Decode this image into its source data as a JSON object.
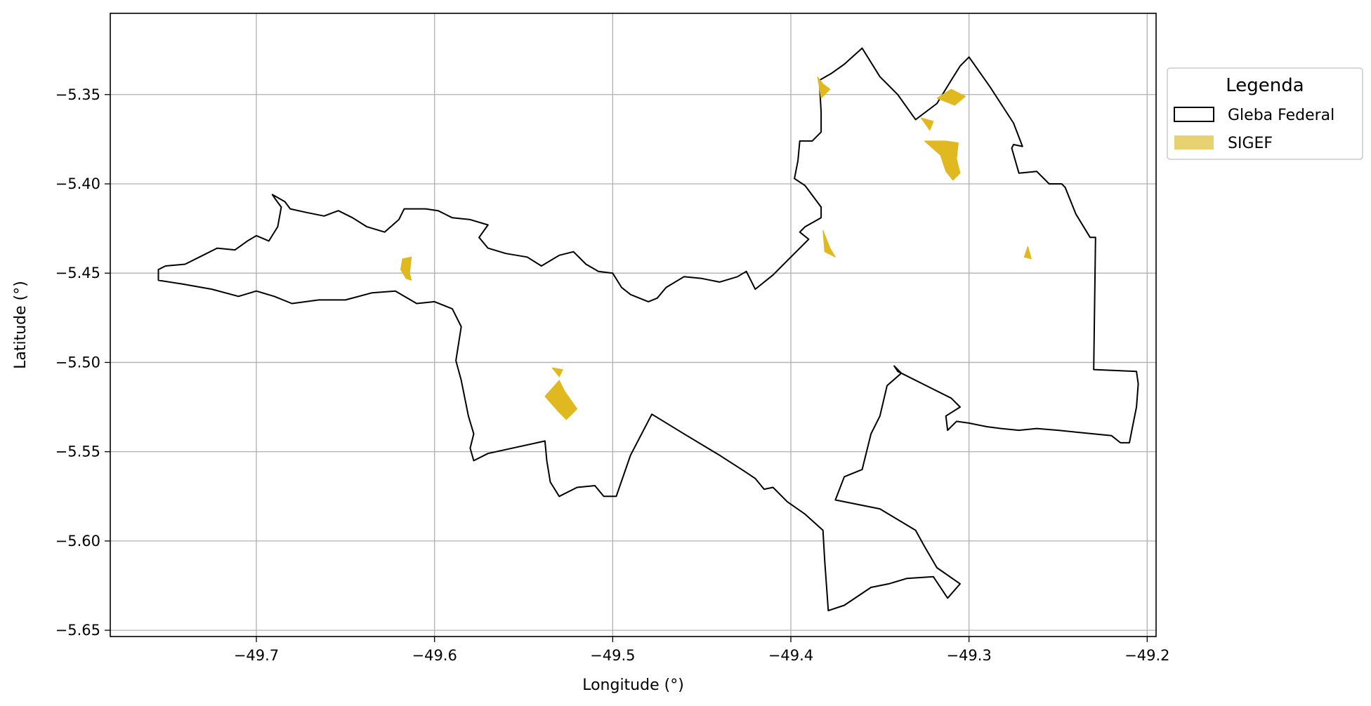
{
  "chart_data": {
    "type": "map",
    "xlabel": "Longitude (°)",
    "ylabel": "Latitude (°)",
    "xlim": [
      -49.782,
      -49.195
    ],
    "ylim": [
      -5.6535,
      -5.3045
    ],
    "grid": true,
    "x_ticks": [
      -49.7,
      -49.6,
      -49.5,
      -49.4,
      -49.3,
      -49.2
    ],
    "x_tick_labels": [
      "−49.7",
      "−49.6",
      "−49.5",
      "−49.4",
      "−49.3",
      "−49.2"
    ],
    "y_ticks": [
      -5.35,
      -5.4,
      -5.45,
      -5.5,
      -5.55,
      -5.6,
      -5.65
    ],
    "y_tick_labels": [
      "−5.35",
      "−5.40",
      "−5.45",
      "−5.50",
      "−5.55",
      "−5.60",
      "−5.65"
    ],
    "legend": {
      "title": "Legenda",
      "placement": "outside-right-top",
      "items": [
        {
          "label": "Gleba Federal",
          "style": "outline",
          "edge_color": "#000000",
          "face_color": "#ffffff"
        },
        {
          "label": "SIGEF",
          "style": "fill",
          "face_color": "#e8d170"
        }
      ]
    },
    "colors": {
      "gleba_edge": "#000000",
      "sigef_fill": "#e0b820",
      "grid": "#b0b0b0"
    },
    "series": [
      {
        "name": "Gleba Federal",
        "kind": "polygon",
        "coords": [
          [
            -49.755,
            -5.448
          ],
          [
            -49.751,
            -5.446
          ],
          [
            -49.74,
            -5.445
          ],
          [
            -49.73,
            -5.44
          ],
          [
            -49.722,
            -5.436
          ],
          [
            -49.712,
            -5.437
          ],
          [
            -49.705,
            -5.432
          ],
          [
            -49.7,
            -5.429
          ],
          [
            -49.693,
            -5.432
          ],
          [
            -49.688,
            -5.424
          ],
          [
            -49.686,
            -5.413
          ],
          [
            -49.689,
            -5.409
          ],
          [
            -49.691,
            -5.406
          ],
          [
            -49.684,
            -5.41
          ],
          [
            -49.681,
            -5.414
          ],
          [
            -49.672,
            -5.416
          ],
          [
            -49.662,
            -5.418
          ],
          [
            -49.654,
            -5.415
          ],
          [
            -49.646,
            -5.419
          ],
          [
            -49.638,
            -5.424
          ],
          [
            -49.628,
            -5.427
          ],
          [
            -49.62,
            -5.42
          ],
          [
            -49.617,
            -5.414
          ],
          [
            -49.605,
            -5.414
          ],
          [
            -49.598,
            -5.415
          ],
          [
            -49.59,
            -5.419
          ],
          [
            -49.58,
            -5.42
          ],
          [
            -49.57,
            -5.423
          ],
          [
            -49.575,
            -5.43
          ],
          [
            -49.57,
            -5.436
          ],
          [
            -49.56,
            -5.439
          ],
          [
            -49.548,
            -5.441
          ],
          [
            -49.54,
            -5.446
          ],
          [
            -49.53,
            -5.44
          ],
          [
            -49.522,
            -5.438
          ],
          [
            -49.515,
            -5.445
          ],
          [
            -49.508,
            -5.449
          ],
          [
            -49.5,
            -5.45
          ],
          [
            -49.495,
            -5.458
          ],
          [
            -49.49,
            -5.462
          ],
          [
            -49.48,
            -5.466
          ],
          [
            -49.475,
            -5.464
          ],
          [
            -49.47,
            -5.458
          ],
          [
            -49.46,
            -5.452
          ],
          [
            -49.45,
            -5.453
          ],
          [
            -49.44,
            -5.455
          ],
          [
            -49.43,
            -5.452
          ],
          [
            -49.425,
            -5.449
          ],
          [
            -49.42,
            -5.459
          ],
          [
            -49.41,
            -5.451
          ],
          [
            -49.4,
            -5.441
          ],
          [
            -49.39,
            -5.431
          ],
          [
            -49.395,
            -5.427
          ],
          [
            -49.392,
            -5.424
          ],
          [
            -49.383,
            -5.419
          ],
          [
            -49.383,
            -5.413
          ],
          [
            -49.392,
            -5.401
          ],
          [
            -49.398,
            -5.397
          ],
          [
            -49.396,
            -5.387
          ],
          [
            -49.395,
            -5.376
          ],
          [
            -49.388,
            -5.376
          ],
          [
            -49.383,
            -5.371
          ],
          [
            -49.383,
            -5.36
          ],
          [
            -49.384,
            -5.342
          ],
          [
            -49.377,
            -5.338
          ],
          [
            -49.37,
            -5.333
          ],
          [
            -49.36,
            -5.324
          ],
          [
            -49.35,
            -5.34
          ],
          [
            -49.34,
            -5.35
          ],
          [
            -49.33,
            -5.364
          ],
          [
            -49.318,
            -5.355
          ],
          [
            -49.31,
            -5.342
          ],
          [
            -49.305,
            -5.334
          ],
          [
            -49.3,
            -5.329
          ],
          [
            -49.288,
            -5.346
          ],
          [
            -49.275,
            -5.366
          ],
          [
            -49.27,
            -5.379
          ],
          [
            -49.275,
            -5.378
          ],
          [
            -49.276,
            -5.38
          ],
          [
            -49.272,
            -5.394
          ],
          [
            -49.262,
            -5.393
          ],
          [
            -49.255,
            -5.4
          ],
          [
            -49.248,
            -5.4
          ],
          [
            -49.246,
            -5.402
          ],
          [
            -49.24,
            -5.417
          ],
          [
            -49.232,
            -5.43
          ],
          [
            -49.229,
            -5.43
          ],
          [
            -49.23,
            -5.504
          ],
          [
            -49.206,
            -5.505
          ],
          [
            -49.205,
            -5.512
          ],
          [
            -49.206,
            -5.525
          ],
          [
            -49.208,
            -5.535
          ],
          [
            -49.21,
            -5.545
          ],
          [
            -49.215,
            -5.545
          ],
          [
            -49.22,
            -5.541
          ],
          [
            -49.23,
            -5.54
          ],
          [
            -49.24,
            -5.539
          ],
          [
            -49.25,
            -5.538
          ],
          [
            -49.262,
            -5.537
          ],
          [
            -49.272,
            -5.538
          ],
          [
            -49.282,
            -5.537
          ],
          [
            -49.29,
            -5.536
          ],
          [
            -49.3,
            -5.534
          ],
          [
            -49.307,
            -5.533
          ],
          [
            -49.312,
            -5.538
          ],
          [
            -49.313,
            -5.53
          ],
          [
            -49.305,
            -5.525
          ],
          [
            -49.31,
            -5.52
          ],
          [
            -49.32,
            -5.515
          ],
          [
            -49.34,
            -5.505
          ],
          [
            -49.342,
            -5.502
          ],
          [
            -49.338,
            -5.506
          ],
          [
            -49.346,
            -5.513
          ],
          [
            -49.35,
            -5.53
          ],
          [
            -49.355,
            -5.54
          ],
          [
            -49.36,
            -5.56
          ],
          [
            -49.37,
            -5.564
          ],
          [
            -49.375,
            -5.577
          ],
          [
            -49.35,
            -5.582
          ],
          [
            -49.33,
            -5.594
          ],
          [
            -49.325,
            -5.603
          ],
          [
            -49.318,
            -5.615
          ],
          [
            -49.305,
            -5.624
          ],
          [
            -49.312,
            -5.632
          ],
          [
            -49.32,
            -5.62
          ],
          [
            -49.335,
            -5.621
          ],
          [
            -49.345,
            -5.624
          ],
          [
            -49.355,
            -5.626
          ],
          [
            -49.37,
            -5.636
          ],
          [
            -49.379,
            -5.639
          ],
          [
            -49.381,
            -5.611
          ],
          [
            -49.382,
            -5.594
          ],
          [
            -49.392,
            -5.585
          ],
          [
            -49.402,
            -5.578
          ],
          [
            -49.41,
            -5.57
          ],
          [
            -49.415,
            -5.571
          ],
          [
            -49.42,
            -5.565
          ],
          [
            -49.426,
            -5.561
          ],
          [
            -49.44,
            -5.552
          ],
          [
            -49.46,
            -5.54
          ],
          [
            -49.478,
            -5.529
          ],
          [
            -49.49,
            -5.552
          ],
          [
            -49.498,
            -5.575
          ],
          [
            -49.505,
            -5.575
          ],
          [
            -49.51,
            -5.569
          ],
          [
            -49.52,
            -5.57
          ],
          [
            -49.53,
            -5.575
          ],
          [
            -49.535,
            -5.567
          ],
          [
            -49.537,
            -5.555
          ],
          [
            -49.538,
            -5.544
          ],
          [
            -49.57,
            -5.551
          ],
          [
            -49.578,
            -5.555
          ],
          [
            -49.58,
            -5.548
          ],
          [
            -49.578,
            -5.54
          ],
          [
            -49.581,
            -5.53
          ],
          [
            -49.585,
            -5.51
          ],
          [
            -49.588,
            -5.499
          ],
          [
            -49.585,
            -5.48
          ],
          [
            -49.59,
            -5.47
          ],
          [
            -49.6,
            -5.466
          ],
          [
            -49.61,
            -5.467
          ],
          [
            -49.622,
            -5.46
          ],
          [
            -49.635,
            -5.461
          ],
          [
            -49.65,
            -5.465
          ],
          [
            -49.665,
            -5.465
          ],
          [
            -49.68,
            -5.467
          ],
          [
            -49.69,
            -5.463
          ],
          [
            -49.7,
            -5.46
          ],
          [
            -49.71,
            -5.463
          ],
          [
            -49.725,
            -5.459
          ],
          [
            -49.742,
            -5.456
          ],
          [
            -49.755,
            -5.454
          ]
        ]
      },
      {
        "name": "SIGEF",
        "kind": "polygons",
        "polygons": [
          [
            [
              -49.618,
              -5.442
            ],
            [
              -49.613,
              -5.441
            ],
            [
              -49.614,
              -5.45
            ],
            [
              -49.613,
              -5.454
            ],
            [
              -49.616,
              -5.453
            ],
            [
              -49.619,
              -5.448
            ]
          ],
          [
            [
              -49.534,
              -5.503
            ],
            [
              -49.53,
              -5.508
            ],
            [
              -49.528,
              -5.504
            ]
          ],
          [
            [
              -49.538,
              -5.519
            ],
            [
              -49.53,
              -5.51
            ],
            [
              -49.527,
              -5.516
            ],
            [
              -49.52,
              -5.526
            ],
            [
              -49.526,
              -5.532
            ],
            [
              -49.531,
              -5.527
            ]
          ],
          [
            [
              -49.385,
              -5.34
            ],
            [
              -49.382,
              -5.344
            ],
            [
              -49.378,
              -5.347
            ],
            [
              -49.383,
              -5.352
            ]
          ],
          [
            [
              -49.382,
              -5.426
            ],
            [
              -49.378,
              -5.436
            ],
            [
              -49.375,
              -5.441
            ],
            [
              -49.381,
              -5.438
            ]
          ],
          [
            [
              -49.31,
              -5.347
            ],
            [
              -49.318,
              -5.352
            ],
            [
              -49.308,
              -5.356
            ],
            [
              -49.302,
              -5.351
            ]
          ],
          [
            [
              -49.327,
              -5.363
            ],
            [
              -49.322,
              -5.37
            ],
            [
              -49.32,
              -5.365
            ]
          ],
          [
            [
              -49.325,
              -5.376
            ],
            [
              -49.316,
              -5.384
            ],
            [
              -49.313,
              -5.393
            ],
            [
              -49.309,
              -5.398
            ],
            [
              -49.305,
              -5.394
            ],
            [
              -49.307,
              -5.386
            ],
            [
              -49.306,
              -5.377
            ],
            [
              -49.313,
              -5.376
            ]
          ],
          [
            [
              -49.267,
              -5.435
            ],
            [
              -49.265,
              -5.442
            ],
            [
              -49.269,
              -5.441
            ]
          ]
        ]
      }
    ]
  }
}
